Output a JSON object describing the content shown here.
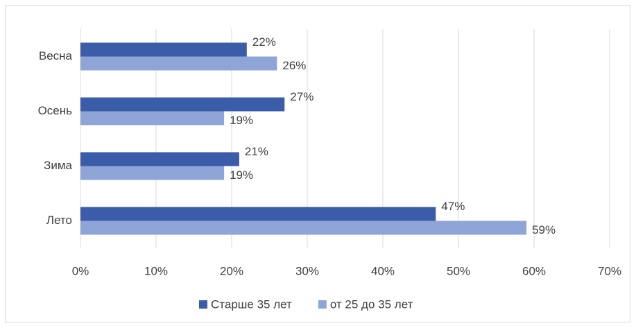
{
  "chart_data": {
    "type": "hbar",
    "categories": [
      "Весна",
      "Осень",
      "Зима",
      "Лето"
    ],
    "series": [
      {
        "name": "Старше 35 лет",
        "color": "#3a5ca9",
        "values": [
          22,
          27,
          21,
          47
        ],
        "value_labels": [
          "22%",
          "27%",
          "21%",
          "47%"
        ]
      },
      {
        "name": "от 25 до 35 лет",
        "color": "#8fa5d7",
        "values": [
          26,
          19,
          19,
          59
        ],
        "value_labels": [
          "26%",
          "19%",
          "19%",
          "59%"
        ]
      }
    ],
    "xlim": [
      0,
      70
    ],
    "xticks": [
      {
        "value": 0,
        "label": "0%"
      },
      {
        "value": 10,
        "label": "10%"
      },
      {
        "value": 20,
        "label": "20%"
      },
      {
        "value": 30,
        "label": "30%"
      },
      {
        "value": 40,
        "label": "40%"
      },
      {
        "value": 50,
        "label": "50%"
      },
      {
        "value": 60,
        "label": "60%"
      },
      {
        "value": 70,
        "label": "70%"
      }
    ],
    "grid": true,
    "legend": "bottom"
  }
}
